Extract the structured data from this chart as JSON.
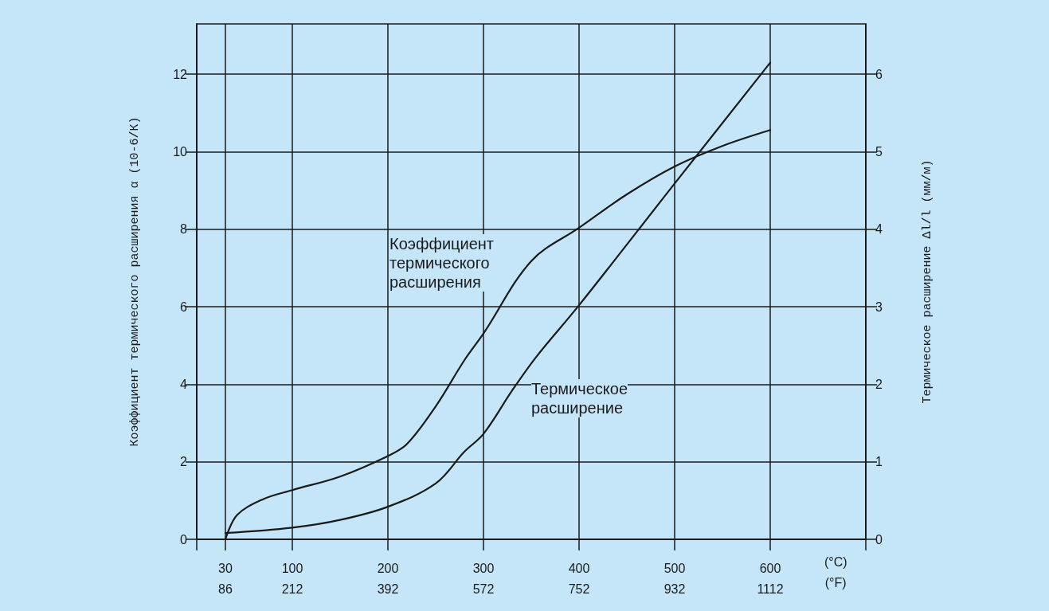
{
  "chart_data": {
    "type": "line",
    "ylabel": "Коэффициент термического расширения α (10-6/К)",
    "y2label": "Термическое расширение Δl/l (мм/м)",
    "xlabel": "(°C)",
    "x2label": "(°F)",
    "series": [
      {
        "color": "#1a1a1a",
        "x": [
          30,
          42,
          69,
          100,
          150,
          200,
          220,
          250,
          280,
          300,
          350,
          400,
          450,
          500,
          550,
          600
        ],
        "values": [
          0,
          0.62,
          1.03,
          1.27,
          1.62,
          2.15,
          2.46,
          3.43,
          4.62,
          5.31,
          7.18,
          8.04,
          8.9,
          9.62,
          10.15,
          10.56
        ]
      },
      {
        "color": "#1a1a1a",
        "axis": "y2",
        "x": [
          30,
          100,
          150,
          200,
          250,
          280,
          300,
          330,
          355,
          400,
          500,
          600
        ],
        "values": [
          0.08,
          0.15,
          0.25,
          0.42,
          0.72,
          1.13,
          1.36,
          1.92,
          2.35,
          3.02,
          4.59,
          6.15
        ]
      }
    ],
    "annotations": [
      "Коэффициент\nтермического\nрасширения",
      "Термическое\nрасширение"
    ],
    "xlim": [
      0,
      700
    ],
    "xticks": [
      {
        "value": 0,
        "label": null
      },
      30,
      100,
      200,
      300,
      400,
      500,
      600,
      {
        "value": 700,
        "label": null
      }
    ],
    "x2lim": [
      32,
      1292
    ],
    "x2ticks": [
      86,
      212,
      392,
      572,
      752,
      932,
      1112
    ],
    "ylim": [
      0,
      13.3
    ],
    "yticks": [
      0,
      2,
      4,
      6,
      8,
      10,
      12
    ],
    "y2lim": [
      0,
      6.65
    ],
    "y2ticks": [
      0,
      1,
      2,
      3,
      4,
      5,
      6
    ],
    "grid": true,
    "marker": "none",
    "line_style": "solid"
  }
}
